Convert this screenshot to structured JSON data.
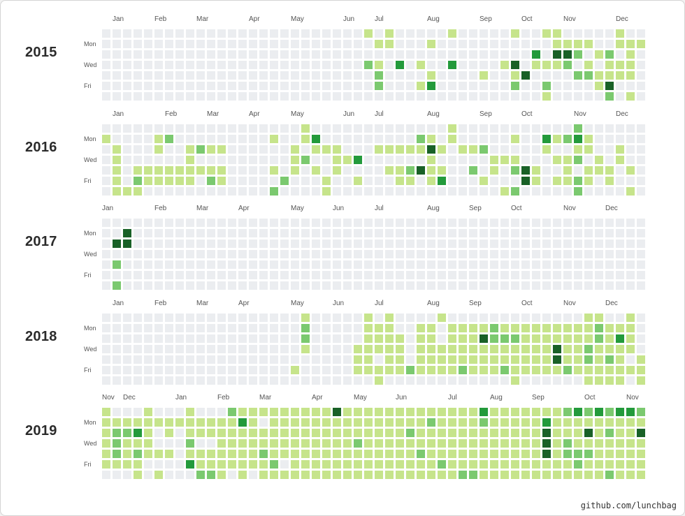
{
  "colors": {
    "empty": "#ebedf0",
    "level1": "#c6e48b",
    "level2": "#7bc96f",
    "level3": "#239a3b",
    "level4": "#196127",
    "text": "#2b2b2b"
  },
  "day_labels": [
    "Mon",
    "Wed",
    "Fri"
  ],
  "footer": "github.com/lunchbag",
  "chart_data": {
    "type": "heatmap",
    "levels": [
      0,
      1,
      2,
      3,
      4
    ],
    "years": [
      {
        "year": "2015",
        "months": [
          "Jan",
          "Feb",
          "Mar",
          "Apr",
          "May",
          "Jun",
          "Jul",
          "Aug",
          "Sep",
          "Oct",
          "Nov",
          "Dec"
        ],
        "month_weeks": [
          1,
          5,
          9,
          14,
          18,
          23,
          26,
          31,
          36,
          40,
          44,
          49
        ],
        "cells": [
          "0000000000000000000000000101000001000001001100000100",
          "0000000000000000000000000011000100000000000111100111",
          "0000000000000000000000000000000000000000030442012010",
          "0000000000000000000000000210301003000014011120101110",
          "0000000000000000000000000020000100001001400002211110",
          "0000000000000000000000000020001300000002002000014000",
          "0000000000000000000000000000000000000000001000002010"
        ]
      },
      {
        "year": "2016",
        "months": [
          "Jan",
          "Feb",
          "Mar",
          "Apr",
          "May",
          "Jun",
          "Jul",
          "Aug",
          "Sep",
          "Oct",
          "Nov",
          "Dec"
        ],
        "month_weeks": [
          1,
          6,
          10,
          14,
          18,
          23,
          26,
          31,
          36,
          40,
          45,
          49
        ],
        "cells": [
          "0000000000000000000100000000000001000000000002000000",
          "1000012000000000100130000000002101000001003123100000",
          "0100010012110000001011100011111410112000001001100100",
          "0100000010000000001200113000000100000111000112010100",
          "0101111111110000101010100001124110020102410010111010",
          "0102111110210000020001001000110130001000410112101000",
          "0111000000000000200001000000000000000012000002000010"
        ]
      },
      {
        "year": "2017",
        "months": [
          "Jan",
          "Feb",
          "Mar",
          "Apr",
          "May",
          "Jun",
          "Jul",
          "Aug",
          "Sep",
          "Oct",
          "Nov",
          "Dec"
        ],
        "month_weeks": [
          0,
          5,
          9,
          13,
          18,
          22,
          26,
          31,
          35,
          39,
          44,
          48
        ],
        "cells": [
          "0000000000000000000000000000000000000000000000000000",
          "0040000000000000000000000000000000000000000000000000",
          "0440000000000000000000000000000000000000000000000000",
          "0000000000000000000000000000000000000000000000000000",
          "0200000000000000000000000000000000000000000000000000",
          "0000000000000000000000000000000000000000000000000000",
          "0200000000000000000000000000000000000000000000000000"
        ]
      },
      {
        "year": "2018",
        "months": [
          "Jan",
          "Feb",
          "Mar",
          "Apr",
          "May",
          "Jun",
          "Jul",
          "Aug",
          "Sep",
          "Oct",
          "Nov",
          "Dec"
        ],
        "month_weeks": [
          1,
          5,
          9,
          13,
          18,
          22,
          26,
          31,
          35,
          40,
          44,
          48
        ],
        "cells": [
          "0000000000000000000100000101000010000000000000110010",
          "0000000000000000000200000111001101111211111111121110",
          "0000000000000000000200000111101101114222111111121310",
          "0000000000000000000100001111101111111111111411211110",
          "0000000000000000000000001101101111111111111411212101",
          "0000000000000000001000001111121111211121111121111111",
          "0000000000000000000000000010000000000001000000111101"
        ]
      },
      {
        "year": "2019",
        "months": [
          "Nov",
          "Dec",
          "Jan",
          "Feb",
          "Mar",
          "Apr",
          "May",
          "Jun",
          "Jul",
          "Aug",
          "Sep",
          "Oct",
          "Nov"
        ],
        "month_weeks": [
          0,
          2,
          7,
          11,
          15,
          20,
          24,
          28,
          33,
          37,
          41,
          46,
          50
        ],
        "cells": [
          "1000100010002111111111411111111111113111111123232332",
          "1111111111111310111111111111111211112111113111111111",
          "1223101011111111111111111111121111111111114111412114",
          "1211100020011111111111112111111111111111114121111111",
          "1212111011111112111111111111112111111111114122211111",
          "1111000031111111201111111111111121111111111112111111",
          "0001010002210101111111111111111111221111111111112111"
        ]
      }
    ]
  }
}
